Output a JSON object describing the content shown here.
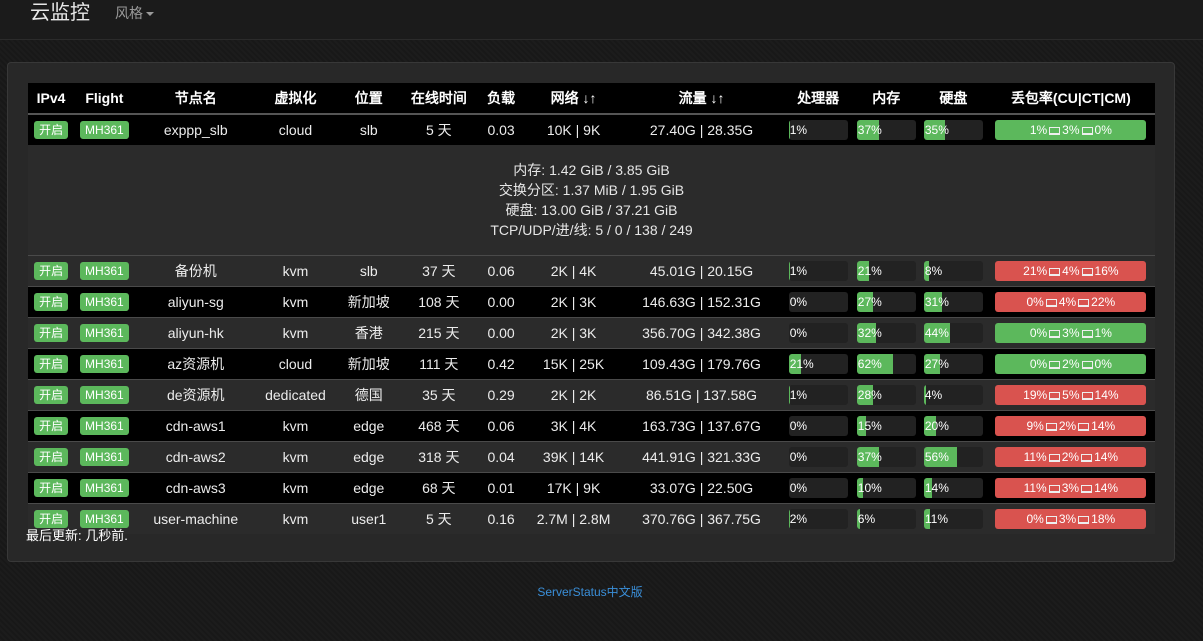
{
  "navbar": {
    "brand": "云监控",
    "style_menu": "风格"
  },
  "table": {
    "headers": [
      "IPv4",
      "Flight",
      "节点名",
      "虚拟化",
      "位置",
      "在线时间",
      "负载",
      "网络 ↓↑",
      "流量 ↓↑",
      "处理器",
      "内存",
      "硬盘",
      "丢包率(CU|CT|CM)"
    ],
    "rows": [
      {
        "ipv4": "开启",
        "flight": "MH361",
        "name": "exppp_slb",
        "virt": "cloud",
        "loc": "slb",
        "uptime": "5 天",
        "load": "0.03",
        "net": "10K | 9K",
        "traffic": "27.40G | 28.35G",
        "cpu": "1%",
        "cpu_pct": 1,
        "mem": "37%",
        "mem_pct": 37,
        "hdd": "35%",
        "hdd_pct": 35,
        "loss_cu": "1%",
        "loss_ct": "3%",
        "loss_cm": "0%",
        "loss_status": "ok"
      },
      {
        "ipv4": "开启",
        "flight": "MH361",
        "name": "备份机",
        "virt": "kvm",
        "loc": "slb",
        "uptime": "37 天",
        "load": "0.06",
        "net": "2K | 4K",
        "traffic": "45.01G | 20.15G",
        "cpu": "1%",
        "cpu_pct": 1,
        "mem": "21%",
        "mem_pct": 21,
        "hdd": "8%",
        "hdd_pct": 8,
        "loss_cu": "21%",
        "loss_ct": "4%",
        "loss_cm": "16%",
        "loss_status": "bad"
      },
      {
        "ipv4": "开启",
        "flight": "MH361",
        "name": "aliyun-sg",
        "virt": "kvm",
        "loc": "新加坡",
        "uptime": "108 天",
        "load": "0.00",
        "net": "2K | 3K",
        "traffic": "146.63G | 152.31G",
        "cpu": "0%",
        "cpu_pct": 0,
        "mem": "27%",
        "mem_pct": 27,
        "hdd": "31%",
        "hdd_pct": 31,
        "loss_cu": "0%",
        "loss_ct": "4%",
        "loss_cm": "22%",
        "loss_status": "bad"
      },
      {
        "ipv4": "开启",
        "flight": "MH361",
        "name": "aliyun-hk",
        "virt": "kvm",
        "loc": "香港",
        "uptime": "215 天",
        "load": "0.00",
        "net": "2K | 3K",
        "traffic": "356.70G | 342.38G",
        "cpu": "0%",
        "cpu_pct": 0,
        "mem": "32%",
        "mem_pct": 32,
        "hdd": "44%",
        "hdd_pct": 44,
        "loss_cu": "0%",
        "loss_ct": "3%",
        "loss_cm": "1%",
        "loss_status": "ok"
      },
      {
        "ipv4": "开启",
        "flight": "MH361",
        "name": "az资源机",
        "virt": "cloud",
        "loc": "新加坡",
        "uptime": "111 天",
        "load": "0.42",
        "net": "15K | 25K",
        "traffic": "109.43G | 179.76G",
        "cpu": "21%",
        "cpu_pct": 21,
        "mem": "62%",
        "mem_pct": 62,
        "hdd": "27%",
        "hdd_pct": 27,
        "loss_cu": "0%",
        "loss_ct": "2%",
        "loss_cm": "0%",
        "loss_status": "ok"
      },
      {
        "ipv4": "开启",
        "flight": "MH361",
        "name": "de资源机",
        "virt": "dedicated",
        "loc": "德国",
        "uptime": "35 天",
        "load": "0.29",
        "net": "2K | 2K",
        "traffic": "86.51G | 137.58G",
        "cpu": "1%",
        "cpu_pct": 1,
        "mem": "28%",
        "mem_pct": 28,
        "hdd": "4%",
        "hdd_pct": 4,
        "loss_cu": "19%",
        "loss_ct": "5%",
        "loss_cm": "14%",
        "loss_status": "bad"
      },
      {
        "ipv4": "开启",
        "flight": "MH361",
        "name": "cdn-aws1",
        "virt": "kvm",
        "loc": "edge",
        "uptime": "468 天",
        "load": "0.06",
        "net": "3K | 4K",
        "traffic": "163.73G | 137.67G",
        "cpu": "0%",
        "cpu_pct": 0,
        "mem": "15%",
        "mem_pct": 15,
        "hdd": "20%",
        "hdd_pct": 20,
        "loss_cu": "9%",
        "loss_ct": "2%",
        "loss_cm": "14%",
        "loss_status": "bad"
      },
      {
        "ipv4": "开启",
        "flight": "MH361",
        "name": "cdn-aws2",
        "virt": "kvm",
        "loc": "edge",
        "uptime": "318 天",
        "load": "0.04",
        "net": "39K | 14K",
        "traffic": "441.91G | 321.33G",
        "cpu": "0%",
        "cpu_pct": 0,
        "mem": "37%",
        "mem_pct": 37,
        "hdd": "56%",
        "hdd_pct": 56,
        "loss_cu": "11%",
        "loss_ct": "2%",
        "loss_cm": "14%",
        "loss_status": "bad"
      },
      {
        "ipv4": "开启",
        "flight": "MH361",
        "name": "cdn-aws3",
        "virt": "kvm",
        "loc": "edge",
        "uptime": "68 天",
        "load": "0.01",
        "net": "17K | 9K",
        "traffic": "33.07G | 22.50G",
        "cpu": "0%",
        "cpu_pct": 0,
        "mem": "10%",
        "mem_pct": 10,
        "hdd": "14%",
        "hdd_pct": 14,
        "loss_cu": "11%",
        "loss_ct": "3%",
        "loss_cm": "14%",
        "loss_status": "bad"
      },
      {
        "ipv4": "开启",
        "flight": "MH361",
        "name": "user-machine",
        "virt": "kvm",
        "loc": "user1",
        "uptime": "5 天",
        "load": "0.16",
        "net": "2.7M | 2.8M",
        "traffic": "370.76G | 367.75G",
        "cpu": "2%",
        "cpu_pct": 2,
        "mem": "6%",
        "mem_pct": 6,
        "hdd": "11%",
        "hdd_pct": 11,
        "loss_cu": "0%",
        "loss_ct": "3%",
        "loss_cm": "18%",
        "loss_status": "bad"
      }
    ],
    "detail": {
      "memory": "内存: 1.42 GiB / 3.85 GiB",
      "swap": "交换分区: 1.37 MiB / 1.95 GiB",
      "disk": "硬盘: 13.00 GiB / 37.21 GiB",
      "conns": "TCP/UDP/进/线: 5 / 0 / 138 / 249"
    }
  },
  "status": {
    "updated": "最后更新: 几秒前."
  },
  "footer": {
    "link": "ServerStatus中文版"
  },
  "colors": {
    "ok": "#5cb85c",
    "bad": "#d9534f"
  }
}
